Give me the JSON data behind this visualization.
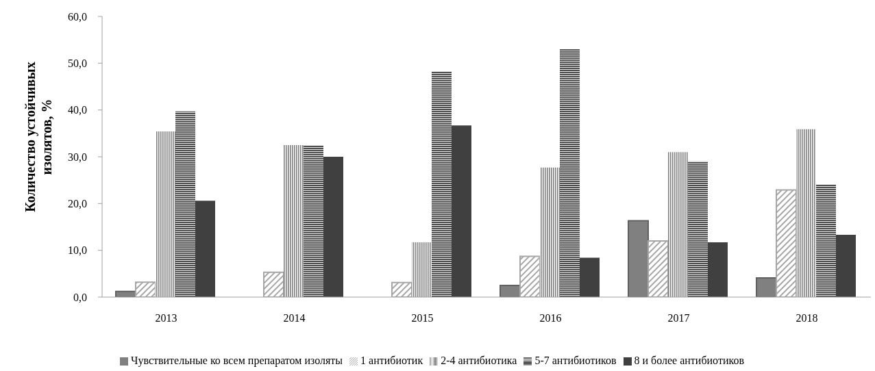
{
  "chart_data": {
    "type": "bar",
    "ylabel": "Количество устойчивых изолятов, %",
    "categories": [
      "2013",
      "2014",
      "2015",
      "2016",
      "2017",
      "2018"
    ],
    "series": [
      {
        "name": "Чувствительные ко всем препаратом изоляты",
        "color": "#808080",
        "values": [
          1.2,
          0,
          0,
          2.5,
          16.3,
          4.1
        ]
      },
      {
        "name": "1 антибиотик",
        "color": "#a6a6a6",
        "values": [
          3.2,
          5.3,
          3.1,
          8.7,
          12.0,
          22.9
        ]
      },
      {
        "name": "2-4 антибиотика",
        "color": "#808080",
        "values": [
          35.4,
          32.5,
          11.7,
          27.7,
          31.0,
          35.9
        ]
      },
      {
        "name": "5-7 антибиотиков",
        "color": "#404040",
        "values": [
          39.7,
          32.5,
          48.3,
          53.0,
          29.0,
          24.1
        ]
      },
      {
        "name": "8 и более антибиотиков",
        "color": "#404040",
        "values": [
          20.6,
          30.0,
          36.7,
          8.4,
          11.7,
          13.3
        ]
      }
    ],
    "ylim": [
      0,
      60
    ],
    "yticks": [
      {
        "value": 0,
        "label": "0,0"
      },
      {
        "value": 10,
        "label": "10,0"
      },
      {
        "value": 20,
        "label": "20,0"
      },
      {
        "value": 30,
        "label": "30,0"
      },
      {
        "value": 40,
        "label": "40,0"
      },
      {
        "value": 50,
        "label": "50,0"
      },
      {
        "value": 60,
        "label": "60,0"
      }
    ],
    "grid": false,
    "legend": "bottom"
  }
}
